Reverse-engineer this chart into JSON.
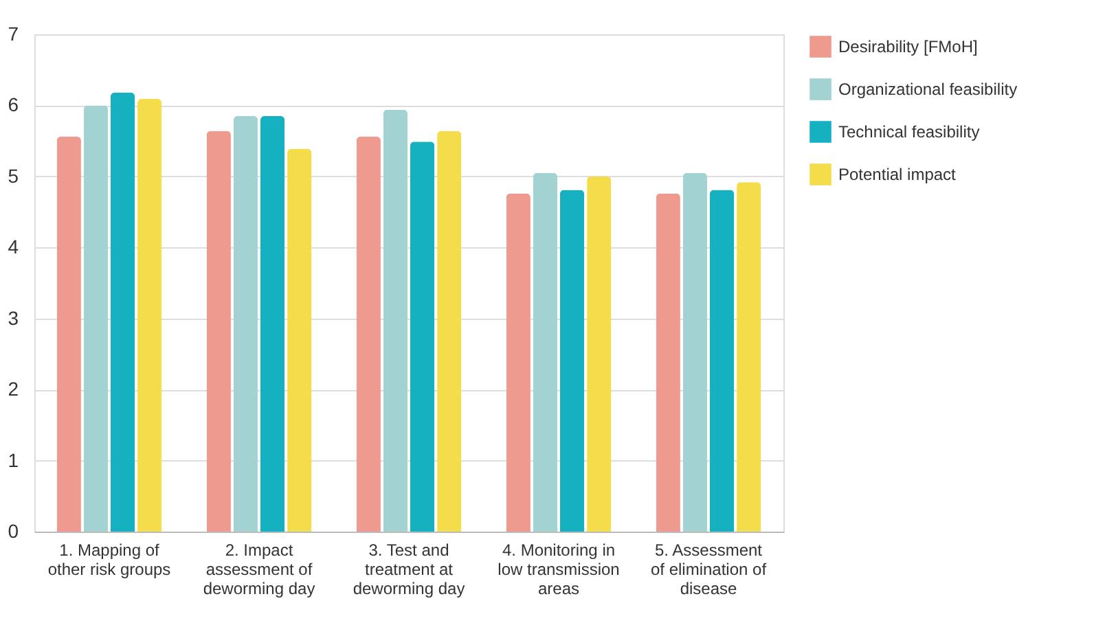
{
  "chart_data": {
    "type": "bar",
    "categories": [
      "1. Mapping of\nother risk groups",
      "2. Impact\nassessment of\ndeworming day",
      "3. Test and\ntreatment at\ndeworming day",
      "4. Monitoring in\nlow transmission\nareas",
      "5. Assessment\nof elimination of\ndisease"
    ],
    "series": [
      {
        "name": "Desirability [FMoH]",
        "color": "#ee9a8e",
        "values": [
          5.56,
          5.64,
          5.56,
          4.76,
          4.76
        ]
      },
      {
        "name": "Organizational feasibility",
        "color": "#a2d2d2",
        "values": [
          6.0,
          5.85,
          5.94,
          5.05,
          5.05
        ]
      },
      {
        "name": "Technical feasibility",
        "color": "#16b1c1",
        "values": [
          6.18,
          5.85,
          5.49,
          4.81,
          4.81
        ]
      },
      {
        "name": "Potential impact",
        "color": "#f4dc4a",
        "values": [
          6.09,
          5.39,
          5.64,
          5.0,
          4.92
        ]
      }
    ],
    "ylim": [
      0,
      7
    ],
    "yticks": [
      0,
      1,
      2,
      3,
      4,
      5,
      6,
      7
    ],
    "grid": "y",
    "legend": "top right"
  }
}
